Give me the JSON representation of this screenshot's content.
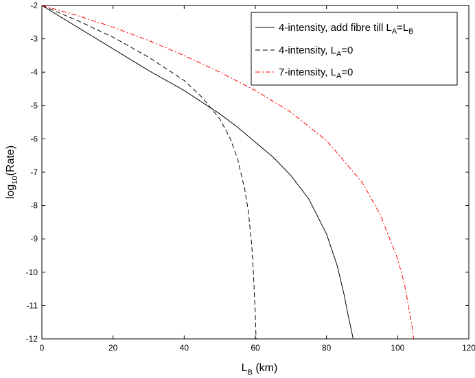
{
  "chart_data": {
    "type": "line",
    "title": "",
    "xlabel": {
      "main": "L",
      "sub": "B",
      "rest": " (km)"
    },
    "ylabel": {
      "main": "log",
      "sub": "10",
      "rest": "(Rate)"
    },
    "xlim": [
      0,
      120
    ],
    "ylim": [
      -12,
      -2
    ],
    "xticks": [
      0,
      20,
      40,
      60,
      80,
      100,
      120
    ],
    "yticks": [
      -2,
      -3,
      -4,
      -5,
      -6,
      -7,
      -8,
      -9,
      -10,
      -11,
      -12
    ],
    "grid": false,
    "legend_position": "top-right",
    "series": [
      {
        "name": "4-intensity, add fibre till L_A=L_B",
        "legend": {
          "prefix": "4-intensity, add fibre till L",
          "sub1": "A",
          "mid": "=L",
          "sub2": "B"
        },
        "color": "#000000",
        "style": "solid",
        "x": [
          0,
          10,
          20,
          30,
          40,
          50,
          55,
          60,
          65,
          70,
          75,
          80,
          83,
          85,
          86,
          87,
          87.5,
          88
        ],
        "y": [
          -2.0,
          -2.65,
          -3.3,
          -3.95,
          -4.55,
          -5.25,
          -5.65,
          -6.1,
          -6.55,
          -7.1,
          -7.8,
          -8.85,
          -9.8,
          -10.7,
          -11.25,
          -11.75,
          -12.0,
          -12.0
        ]
      },
      {
        "name": "4-intensity, L_A=0",
        "legend": {
          "prefix": "4-intensity, L",
          "sub1": "A",
          "mid": "=0",
          "sub2": ""
        },
        "color": "#000000",
        "style": "dashed",
        "x": [
          0,
          10,
          20,
          30,
          40,
          45,
          50,
          53,
          55,
          57,
          58,
          59,
          59.5,
          60,
          60.2
        ],
        "y": [
          -2.0,
          -2.45,
          -2.95,
          -3.55,
          -4.25,
          -4.75,
          -5.4,
          -6.0,
          -6.6,
          -7.5,
          -8.15,
          -9.2,
          -10.1,
          -11.3,
          -12.0
        ]
      },
      {
        "name": "7-intensity, L_A=0",
        "legend": {
          "prefix": "7-intensity, L",
          "sub1": "A",
          "mid": "=0",
          "sub2": ""
        },
        "color": "#ff0000",
        "style": "dashdot",
        "x": [
          0,
          10,
          20,
          30,
          40,
          50,
          60,
          70,
          80,
          90,
          95,
          100,
          102,
          103,
          104,
          104.5
        ],
        "y": [
          -2.0,
          -2.3,
          -2.65,
          -3.05,
          -3.5,
          -4.0,
          -4.55,
          -5.2,
          -6.05,
          -7.3,
          -8.25,
          -9.6,
          -10.4,
          -11.0,
          -11.6,
          -12.0
        ]
      }
    ]
  }
}
